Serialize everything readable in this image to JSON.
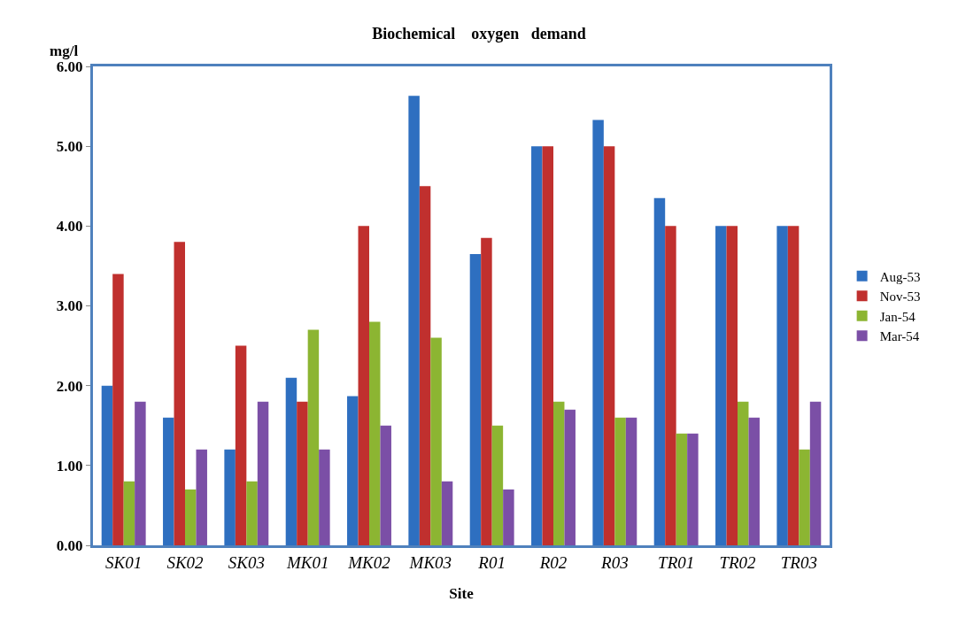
{
  "chart_data": {
    "type": "bar",
    "title": "Biochemical    oxygen   demand",
    "ylabel": "mg/l",
    "xlabel": "Site",
    "categories": [
      "SK01",
      "SK02",
      "SK03",
      "MK01",
      "MK02",
      "MK03",
      "R01",
      "R02",
      "R03",
      "TR01",
      "TR02",
      "TR03"
    ],
    "series": [
      {
        "name": "Aug-53",
        "color": "#2e6fc0",
        "values": [
          2.0,
          1.6,
          1.2,
          2.1,
          1.87,
          5.63,
          3.65,
          5.0,
          5.33,
          4.35,
          4.0,
          4.0
        ]
      },
      {
        "name": "Nov-53",
        "color": "#c0302e",
        "values": [
          3.4,
          3.8,
          2.5,
          1.8,
          4.0,
          4.5,
          3.85,
          5.0,
          5.0,
          4.0,
          4.0,
          4.0
        ]
      },
      {
        "name": "Jan-54",
        "color": "#8cb532",
        "values": [
          0.8,
          0.7,
          0.8,
          2.7,
          2.8,
          2.6,
          1.5,
          1.8,
          1.6,
          1.4,
          1.8,
          1.2
        ]
      },
      {
        "name": "Mar-54",
        "color": "#7b4fa6",
        "values": [
          1.8,
          1.2,
          1.8,
          1.2,
          1.5,
          0.8,
          0.7,
          1.7,
          1.6,
          1.4,
          1.6,
          1.8
        ]
      }
    ],
    "ylim": [
      0,
      6
    ],
    "yticks": [
      {
        "value": 0,
        "label": "0.00"
      },
      {
        "value": 1,
        "label": "1.00"
      },
      {
        "value": 2,
        "label": "2.00"
      },
      {
        "value": 3,
        "label": "3.00"
      },
      {
        "value": 4,
        "label": "4.00"
      },
      {
        "value": 5,
        "label": "5.00"
      },
      {
        "value": 6,
        "label": "6.00"
      }
    ],
    "grid": false,
    "legend": "right"
  }
}
